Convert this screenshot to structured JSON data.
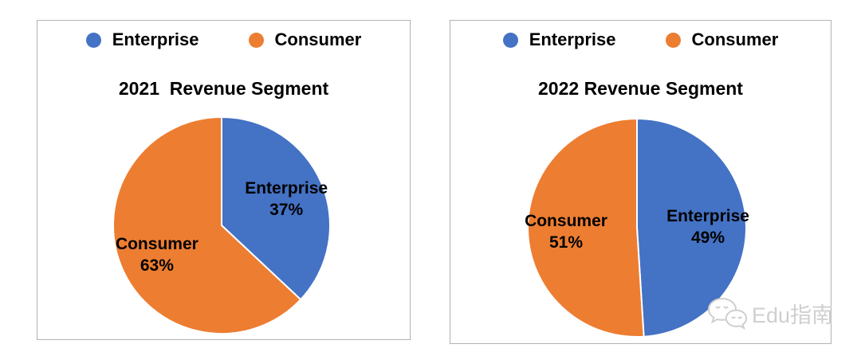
{
  "colors": {
    "enterprise_blue": "#4472C4",
    "consumer_orange": "#ED7D31",
    "panel_border": "#b2b2b2",
    "label_text": "#000000",
    "watermark_gray": "#cfcfcf"
  },
  "chart_data": [
    {
      "type": "pie",
      "title": "2021  Revenue Segment",
      "categories": [
        "Enterprise",
        "Consumer"
      ],
      "values": [
        37,
        63
      ],
      "unit": "%",
      "colors": [
        "#4472C4",
        "#ED7D31"
      ],
      "legend_position": "top",
      "start_angle": 0,
      "direction": "clockwise",
      "slice_labels": [
        "Enterprise 37%",
        "Consumer 63%"
      ]
    },
    {
      "type": "pie",
      "title": "2022 Revenue Segment",
      "categories": [
        "Enterprise",
        "Consumer"
      ],
      "values": [
        49,
        51
      ],
      "unit": "%",
      "colors": [
        "#4472C4",
        "#ED7D31"
      ],
      "legend_position": "top",
      "start_angle": 0,
      "direction": "clockwise",
      "slice_labels": [
        "Enterprise 49%",
        "Consumer 51%"
      ]
    }
  ],
  "watermark": {
    "icon": "wechat-icon",
    "text": "Edu指南"
  }
}
